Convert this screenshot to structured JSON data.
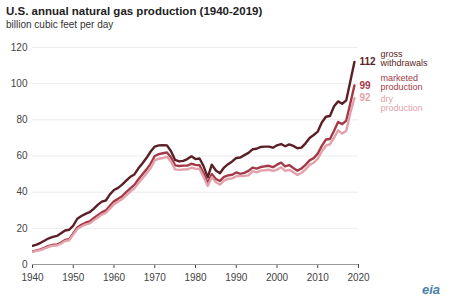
{
  "chart_data": {
    "type": "line",
    "title": "U.S. annual natural gas production (1940-2019)",
    "subtitle": "billion cubic feet per day",
    "logo": "eia",
    "x": [
      1940,
      1941,
      1942,
      1943,
      1944,
      1945,
      1946,
      1947,
      1948,
      1949,
      1950,
      1951,
      1952,
      1953,
      1954,
      1955,
      1956,
      1957,
      1958,
      1959,
      1960,
      1961,
      1962,
      1963,
      1964,
      1965,
      1966,
      1967,
      1968,
      1969,
      1970,
      1971,
      1972,
      1973,
      1974,
      1975,
      1976,
      1977,
      1978,
      1979,
      1980,
      1981,
      1982,
      1983,
      1984,
      1985,
      1986,
      1987,
      1988,
      1989,
      1990,
      1991,
      1992,
      1993,
      1994,
      1995,
      1996,
      1997,
      1998,
      1999,
      2000,
      2001,
      2002,
      2003,
      2004,
      2005,
      2006,
      2007,
      2008,
      2009,
      2010,
      2011,
      2012,
      2013,
      2014,
      2015,
      2016,
      2017,
      2018,
      2019
    ],
    "series": [
      {
        "name": "gross withdrawals",
        "color": "#5b1f26",
        "values": [
          10.3,
          11.0,
          12.0,
          13.3,
          14.5,
          15.3,
          15.8,
          17.3,
          18.8,
          19.2,
          21.5,
          25.3,
          26.8,
          28.0,
          28.9,
          30.8,
          33.0,
          34.8,
          35.4,
          38.8,
          41.2,
          42.4,
          44.2,
          46.4,
          48.5,
          49.8,
          53.2,
          56.0,
          59.0,
          62.5,
          65.2,
          65.9,
          66.0,
          65.9,
          62.6,
          57.8,
          57.0,
          57.3,
          58.3,
          59.8,
          58.3,
          58.6,
          54.3,
          48.2,
          55.2,
          52.0,
          50.5,
          53.6,
          55.5,
          57.0,
          58.9,
          59.2,
          60.5,
          61.7,
          63.7,
          64.0,
          65.0,
          65.2,
          65.2,
          64.6,
          65.9,
          66.6,
          65.4,
          66.4,
          65.6,
          64.3,
          64.6,
          67.0,
          70.0,
          71.6,
          73.5,
          78.5,
          81.7,
          82.1,
          87.5,
          90.2,
          88.9,
          90.8,
          101.3,
          112
        ]
      },
      {
        "name": "marketed production",
        "color": "#a33a48",
        "values": [
          7.3,
          7.8,
          8.4,
          9.3,
          10.3,
          10.9,
          11.0,
          12.2,
          13.6,
          14.0,
          17.2,
          20.5,
          22.0,
          23.1,
          23.8,
          25.6,
          27.2,
          28.8,
          29.9,
          32.4,
          34.9,
          36.3,
          37.8,
          40.0,
          42.1,
          44.0,
          47.1,
          49.9,
          52.6,
          55.8,
          60.0,
          61.0,
          61.5,
          62.0,
          59.2,
          54.8,
          54.5,
          54.7,
          54.7,
          55.7,
          55.1,
          54.9,
          50.3,
          45.1,
          50.1,
          47.3,
          46.2,
          48.4,
          49.3,
          49.6,
          50.9,
          50.1,
          50.7,
          51.8,
          53.6,
          53.0,
          53.9,
          54.3,
          54.6,
          53.8,
          55.2,
          56.3,
          54.3,
          55.0,
          53.4,
          51.9,
          53.1,
          55.1,
          57.6,
          58.8,
          61.3,
          65.6,
          69.1,
          69.4,
          74.0,
          78.8,
          77.6,
          79.6,
          89.2,
          99
        ]
      },
      {
        "name": "dry production",
        "color": "#e3a2ab",
        "values": [
          7.0,
          7.5,
          8.0,
          8.9,
          9.8,
          10.4,
          10.5,
          11.6,
          13.0,
          13.4,
          16.5,
          19.6,
          21.0,
          22.1,
          22.7,
          24.4,
          26.0,
          27.6,
          28.6,
          30.9,
          33.4,
          34.7,
          36.2,
          38.2,
          40.3,
          42.1,
          45.0,
          47.7,
          50.4,
          53.4,
          57.6,
          58.5,
          58.9,
          59.5,
          56.9,
          52.6,
          52.3,
          52.5,
          52.6,
          53.5,
          53.0,
          52.8,
          48.3,
          43.4,
          48.3,
          45.5,
          44.2,
          46.4,
          47.3,
          47.6,
          48.8,
          48.9,
          49.0,
          49.3,
          51.6,
          51.0,
          51.9,
          52.1,
          52.4,
          51.8,
          52.4,
          53.8,
          51.8,
          52.3,
          51.1,
          49.5,
          50.6,
          52.6,
          55.1,
          56.3,
          58.4,
          62.5,
          65.7,
          66.5,
          70.1,
          74.2,
          72.4,
          74.0,
          83.8,
          92
        ]
      }
    ],
    "xlim": [
      1940,
      2020
    ],
    "xticks": [
      1940,
      1950,
      1960,
      1970,
      1980,
      1990,
      2000,
      2010,
      2020
    ],
    "ylim": [
      0,
      120
    ],
    "yticks": [
      0,
      20,
      40,
      60,
      80,
      100,
      120
    ],
    "grid": true
  }
}
